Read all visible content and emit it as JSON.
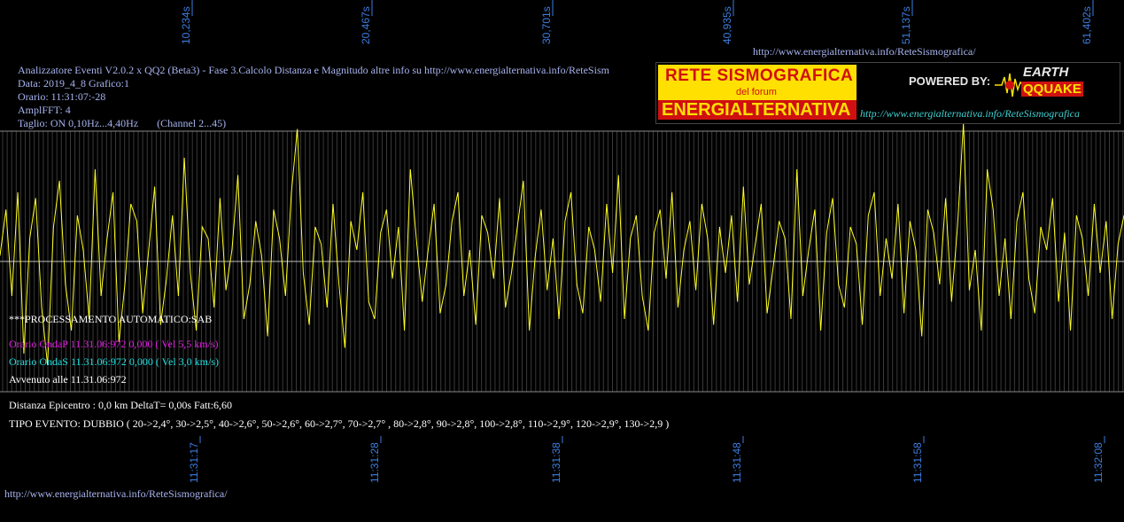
{
  "header": {
    "url_top": "http://www.energialternativa.info/ReteSismografica/",
    "lines": [
      "Analizzatore Eventi V2.0.2 x QQ2 (Beta3) - Fase 3.Calcolo Distanza e Magnitudo altre info su http://www.energialternativa.info/ReteSism",
      "Data: 2019_4_8 Grafico:1",
      "Orario: 11:31:07:-28",
      "AmplFFT: 4",
      "Taglio: ON 0,10Hz...4,40Hz       (Channel 2...45)"
    ]
  },
  "logo": {
    "line1": "RETE SISMOGRAFICA",
    "line2": "del forum",
    "line3": "ENERGIALTERNATIVA",
    "powered": "POWERED BY:",
    "brand_top": "EARTH",
    "brand_bottom": "QQUAKE",
    "url": "http://www.energialternativa.info/ReteSismografica",
    "colors": {
      "yellow": "#ffe000",
      "red": "#d01010"
    }
  },
  "processing": {
    "title": "***PROCESSAMENTO AUTOMATICO:SAB",
    "onda_p": "Orario OndaP 11.31.06:972  0,000 ( Vel 5,5 km/s)",
    "onda_s": "Orario OndaS 11.31.06:972  0,000 ( Vel 3,0 km/s)",
    "avvenuto": "Avvenuto alle 11.31.06:972",
    "distanza": "Distanza Epicentro : 0,0 km DeltaT= 0,00s  Fatt:6,60",
    "tipo_evento": "TIPO EVENTO: DUBBIO ( 20->2,4°, 30->2,5°, 40->2,6°, 50->2,6°, 60->2,7°, 70->2,7° , 80->2,8°, 90->2,8°, 100->2,8°, 110->2,9°, 120->2,9°, 130->2,9 )",
    "colors": {
      "onda_p": "#e020e0",
      "onda_s": "#20e0e0"
    }
  },
  "footer": {
    "url": "http://www.energialternativa.info/ReteSismografica/"
  },
  "chart_data": {
    "type": "line",
    "series_color": "#ffff20",
    "top_tick_labels": [
      "10,234s",
      "20,467s",
      "30,701s",
      "40,935s",
      "51,137s",
      "61,402s"
    ],
    "bottom_tick_labels": [
      "11:31:17",
      "11:31:28",
      "11:31:38",
      "11:31:48",
      "11:31:58",
      "11:32:08"
    ],
    "grid": true,
    "x_range_s": [
      0,
      63
    ],
    "series": [
      {
        "values": [
          0.05,
          0.45,
          -0.3,
          0.6,
          -0.8,
          0.2,
          0.55,
          -0.4,
          -0.9,
          0.3,
          0.7,
          -0.2,
          -0.6,
          0.4,
          0.1,
          -0.5,
          0.8,
          -0.3,
          0.2,
          0.6,
          -0.7,
          -0.2,
          0.5,
          0.35,
          -0.45,
          0.1,
          0.65,
          -0.55,
          -0.15,
          0.4,
          -0.3,
          0.9,
          -0.1,
          -0.6,
          0.3,
          0.2,
          -0.4,
          0.55,
          -0.25,
          0.1,
          0.75,
          -0.5,
          -0.2,
          0.35,
          0.05,
          -0.65,
          0.45,
          0.2,
          -0.3,
          0.6,
          1.15,
          -0.1,
          -0.55,
          0.3,
          0.15,
          -0.4,
          0.5,
          -0.2,
          -0.75,
          0.35,
          0.1,
          0.6,
          -0.35,
          -0.5,
          0.25,
          0.45,
          -0.15,
          0.3,
          -0.6,
          0.8,
          0.2,
          -0.35,
          0.1,
          0.5,
          -0.45,
          -0.2,
          0.35,
          0.6,
          -0.3,
          0.1,
          -0.55,
          0.4,
          0.25,
          -0.15,
          0.55,
          -0.4,
          -0.1,
          0.3,
          0.7,
          -0.6,
          0.05,
          0.45,
          -0.25,
          0.2,
          -0.5,
          0.35,
          0.6,
          -0.2,
          -0.45,
          0.3,
          0.1,
          -0.35,
          0.5,
          -0.1,
          0.75,
          -0.5,
          0.2,
          0.4,
          -0.3,
          -0.6,
          0.25,
          0.45,
          -0.15,
          0.6,
          -0.4,
          0.1,
          0.35,
          -0.25,
          0.5,
          0.2,
          -0.55,
          0.3,
          -0.1,
          0.4,
          -0.35,
          0.65,
          -0.2,
          0.15,
          0.5,
          -0.45,
          -0.05,
          0.35,
          0.2,
          -0.5,
          0.8,
          -0.3,
          0.1,
          0.45,
          -0.6,
          0.25,
          0.55,
          -0.2,
          -0.4,
          0.3,
          0.15,
          -0.55,
          0.4,
          0.6,
          -0.3,
          0.2,
          -0.15,
          0.5,
          -0.45,
          0.35,
          0.1,
          -0.65,
          0.45,
          0.25,
          -0.2,
          0.55,
          -0.35,
          0.3,
          1.2,
          -0.25,
          0.1,
          -0.6,
          0.8,
          0.45,
          -0.3,
          0.2,
          -0.5,
          0.35,
          0.6,
          -0.15,
          -0.45,
          0.3,
          0.1,
          0.55,
          -0.35,
          0.25,
          -0.6,
          0.4,
          0.2,
          -0.3,
          0.5,
          -0.1,
          0.35,
          -0.5,
          0.15,
          0.4
        ]
      }
    ]
  }
}
